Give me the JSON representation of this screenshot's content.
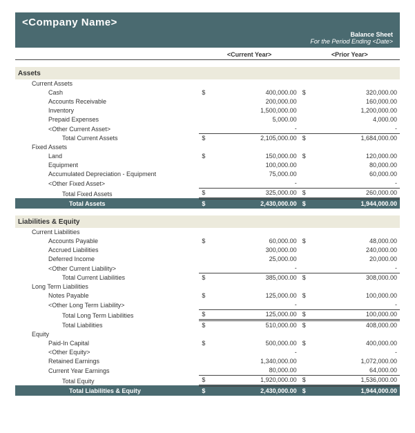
{
  "header": {
    "company": "<Company Name>",
    "title": "Balance Sheet",
    "period": "For the Period Ending <Date>",
    "col_current": "<Current Year>",
    "col_prior": "<Prior Year>"
  },
  "sym": "$",
  "dash": "-",
  "sections": {
    "assets": {
      "label": "Assets",
      "current": {
        "label": "Current Assets",
        "cash": {
          "label": "Cash",
          "cy": "400,000.00",
          "py": "320,000.00"
        },
        "ar": {
          "label": "Accounts Receivable",
          "cy": "200,000.00",
          "py": "160,000.00"
        },
        "inventory": {
          "label": "Inventory",
          "cy": "1,500,000.00",
          "py": "1,200,000.00"
        },
        "prepaid": {
          "label": "Prepaid Expenses",
          "cy": "5,000.00",
          "py": "4,000.00"
        },
        "other": {
          "label": "<Other Current Asset>"
        },
        "total": {
          "label": "Total Current Assets",
          "cy": "2,105,000.00",
          "py": "1,684,000.00"
        }
      },
      "fixed": {
        "label": "Fixed Assets",
        "land": {
          "label": "Land",
          "cy": "150,000.00",
          "py": "120,000.00"
        },
        "equip": {
          "label": "Equipment",
          "cy": "100,000.00",
          "py": "80,000.00"
        },
        "accdep": {
          "label": "Accumulated Depreciation - Equipment",
          "cy": "75,000.00",
          "py": "60,000.00"
        },
        "other": {
          "label": "<Other Fixed Asset>"
        },
        "total": {
          "label": "Total Fixed Assets",
          "cy": "325,000.00",
          "py": "260,000.00"
        }
      },
      "total": {
        "label": "Total Assets",
        "cy": "2,430,000.00",
        "py": "1,944,000.00"
      }
    },
    "liab": {
      "label": "Liabilities & Equity",
      "current": {
        "label": "Current Liabilities",
        "ap": {
          "label": "Accounts Payable",
          "cy": "60,000.00",
          "py": "48,000.00"
        },
        "accrued": {
          "label": "Accrued Liabilities",
          "cy": "300,000.00",
          "py": "240,000.00"
        },
        "deferred": {
          "label": "Deferred Income",
          "cy": "25,000.00",
          "py": "20,000.00"
        },
        "other": {
          "label": "<Other Current Liability>"
        },
        "total": {
          "label": "Total Current Liabilities",
          "cy": "385,000.00",
          "py": "308,000.00"
        }
      },
      "long": {
        "label": "Long Term Liabilities",
        "notes": {
          "label": "Notes Payable",
          "cy": "125,000.00",
          "py": "100,000.00"
        },
        "other": {
          "label": "<Other Long Term Liability>"
        },
        "total": {
          "label": "Total Long Term Liabilities",
          "cy": "125,000.00",
          "py": "100,000.00"
        }
      },
      "total_liab": {
        "label": "Total Liabilities",
        "cy": "510,000.00",
        "py": "408,000.00"
      },
      "equity": {
        "label": "Equity",
        "paidin": {
          "label": "Paid-In Capital",
          "cy": "500,000.00",
          "py": "400,000.00"
        },
        "other": {
          "label": "<Other Equity>"
        },
        "retained": {
          "label": "Retained Earnings",
          "cy": "1,340,000.00",
          "py": "1,072,000.00"
        },
        "cye": {
          "label": "Current Year Earnings",
          "cy": "80,000.00",
          "py": "64,000.00"
        },
        "total": {
          "label": "Total Equity",
          "cy": "1,920,000.00",
          "py": "1,536,000.00"
        }
      },
      "total": {
        "label": "Total Liabilities & Equity",
        "cy": "2,430,000.00",
        "py": "1,944,000.00"
      }
    }
  },
  "style": {
    "header_bg": "#4a6a70",
    "header_fg": "#ffffff",
    "section_bg": "#eceadc",
    "body_font_size_pt": 9,
    "company_font_size_pt": 15,
    "grid_line_color": "#444444"
  }
}
